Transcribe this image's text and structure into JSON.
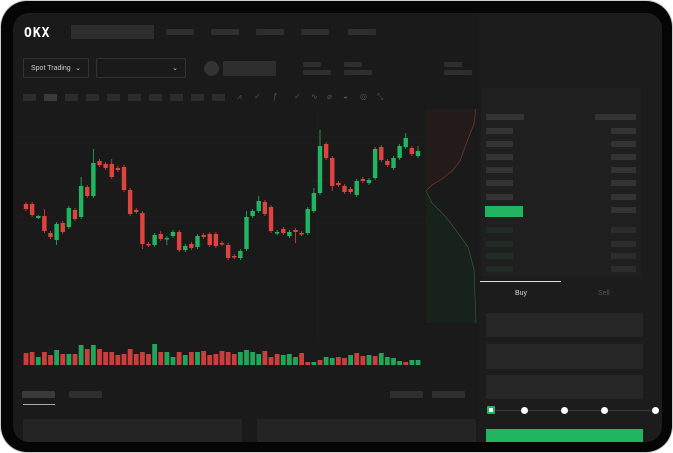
{
  "header": {
    "logo": "OKX"
  },
  "toolbar": {
    "market_dropdown": "Spot Trading",
    "market_chevron": "⌄",
    "pair_chevron": "⌄"
  },
  "chart_icons": [
    "line-tool-icon",
    "check-tool-icon",
    "fx-icon",
    "check-tool-icon",
    "wave-icon",
    "ruler-icon",
    "magnet-icon",
    "target-icon",
    "fullscreen-icon"
  ],
  "orderbook": {
    "view_icons": [
      "both-sides-icon",
      "bids-only-icon",
      "asks-only-icon"
    ]
  },
  "trade": {
    "tabs": [
      "Buy",
      "Sell"
    ],
    "active_tab": "Buy",
    "slider_value_percent": 0,
    "slider_steps": [
      0,
      25,
      50,
      75,
      100
    ]
  },
  "colors": {
    "up": "#22b561",
    "down": "#e0433f",
    "background": "#1a1a1a"
  },
  "chart_data": {
    "type": "candlestick",
    "title": "",
    "xlabel": "",
    "ylabel": "",
    "ylim": [
      0,
      160
    ],
    "grid": true,
    "candles_ohlc": [
      [
        67,
        69,
        60,
        62
      ],
      [
        67,
        69,
        54,
        56
      ],
      [
        53,
        56,
        52,
        55
      ],
      [
        55,
        62,
        38,
        40
      ],
      [
        38,
        40,
        32,
        34
      ],
      [
        31,
        49,
        26,
        47
      ],
      [
        48,
        50,
        37,
        39
      ],
      [
        44,
        65,
        42,
        63
      ],
      [
        61,
        63,
        50,
        52
      ],
      [
        54,
        94,
        52,
        85
      ],
      [
        84,
        86,
        73,
        75
      ],
      [
        75,
        122,
        73,
        108
      ],
      [
        110,
        112,
        104,
        106
      ],
      [
        107,
        109,
        101,
        103
      ],
      [
        107,
        112,
        92,
        94
      ],
      [
        103,
        105,
        99,
        101
      ],
      [
        104,
        106,
        79,
        81
      ],
      [
        81,
        83,
        55,
        57
      ],
      [
        61,
        63,
        57,
        59
      ],
      [
        58,
        60,
        22,
        27
      ],
      [
        27,
        29,
        24,
        26
      ],
      [
        26,
        38,
        24,
        36
      ],
      [
        37,
        40,
        30,
        32
      ],
      [
        32,
        35,
        26,
        33
      ],
      [
        35,
        41,
        33,
        39
      ],
      [
        39,
        41,
        19,
        21
      ],
      [
        21,
        27,
        19,
        25
      ],
      [
        27,
        29,
        21,
        23
      ],
      [
        24,
        37,
        22,
        35
      ],
      [
        36,
        38,
        32,
        34
      ],
      [
        37,
        39,
        24,
        26
      ],
      [
        37,
        39,
        23,
        25
      ],
      [
        28,
        30,
        25,
        27
      ],
      [
        26,
        28,
        11,
        13
      ],
      [
        15,
        17,
        12,
        14
      ],
      [
        13,
        22,
        11,
        20
      ],
      [
        22,
        60,
        20,
        54
      ],
      [
        55,
        62,
        53,
        60
      ],
      [
        60,
        75,
        58,
        70
      ],
      [
        69,
        71,
        55,
        57
      ],
      [
        64,
        66,
        38,
        40
      ],
      [
        38,
        41,
        36,
        39
      ],
      [
        42,
        44,
        36,
        38
      ],
      [
        35,
        41,
        33,
        39
      ],
      [
        41,
        43,
        28,
        39
      ],
      [
        38,
        40,
        35,
        37
      ],
      [
        38,
        64,
        36,
        62
      ],
      [
        60,
        83,
        58,
        78
      ],
      [
        78,
        141,
        76,
        125
      ],
      [
        127,
        129,
        111,
        113
      ],
      [
        113,
        115,
        80,
        85
      ],
      [
        88,
        90,
        84,
        86
      ],
      [
        85,
        87,
        77,
        79
      ],
      [
        82,
        84,
        77,
        79
      ],
      [
        76,
        92,
        74,
        90
      ],
      [
        92,
        94,
        88,
        90
      ],
      [
        88,
        93,
        86,
        91
      ],
      [
        93,
        124,
        91,
        122
      ],
      [
        124,
        126,
        109,
        111
      ],
      [
        110,
        112,
        104,
        106
      ],
      [
        103,
        115,
        101,
        113
      ],
      [
        113,
        127,
        111,
        125
      ],
      [
        124,
        138,
        122,
        133
      ],
      [
        123,
        125,
        115,
        117
      ],
      [
        115,
        125,
        113,
        120
      ]
    ],
    "volumes": [
      12,
      13,
      8,
      13,
      10,
      15,
      11,
      11,
      11,
      20,
      16,
      20,
      16,
      13,
      13,
      10,
      11,
      16,
      11,
      13,
      11,
      21,
      13,
      13,
      8,
      13,
      10,
      13,
      13,
      14,
      10,
      11,
      14,
      13,
      11,
      13,
      15,
      13,
      11,
      14,
      8,
      11,
      10,
      11,
      8,
      12,
      3,
      3,
      5,
      8,
      7,
      8,
      7,
      10,
      12,
      9,
      10,
      9,
      12,
      8,
      7,
      4,
      3,
      5,
      5
    ],
    "volume_directions": [
      "down",
      "down",
      "up",
      "down",
      "down",
      "up",
      "down",
      "up",
      "down",
      "up",
      "down",
      "up",
      "down",
      "down",
      "down",
      "down",
      "down",
      "down",
      "down",
      "down",
      "down",
      "up",
      "down",
      "up",
      "up",
      "down",
      "up",
      "down",
      "up",
      "down",
      "down",
      "down",
      "down",
      "down",
      "down",
      "up",
      "up",
      "up",
      "up",
      "down",
      "down",
      "down",
      "up",
      "up",
      "up",
      "down",
      "down",
      "up",
      "down",
      "up",
      "up",
      "down",
      "down",
      "up",
      "down",
      "down",
      "up",
      "down",
      "up",
      "up",
      "up",
      "up",
      "down",
      "up",
      "up"
    ]
  }
}
